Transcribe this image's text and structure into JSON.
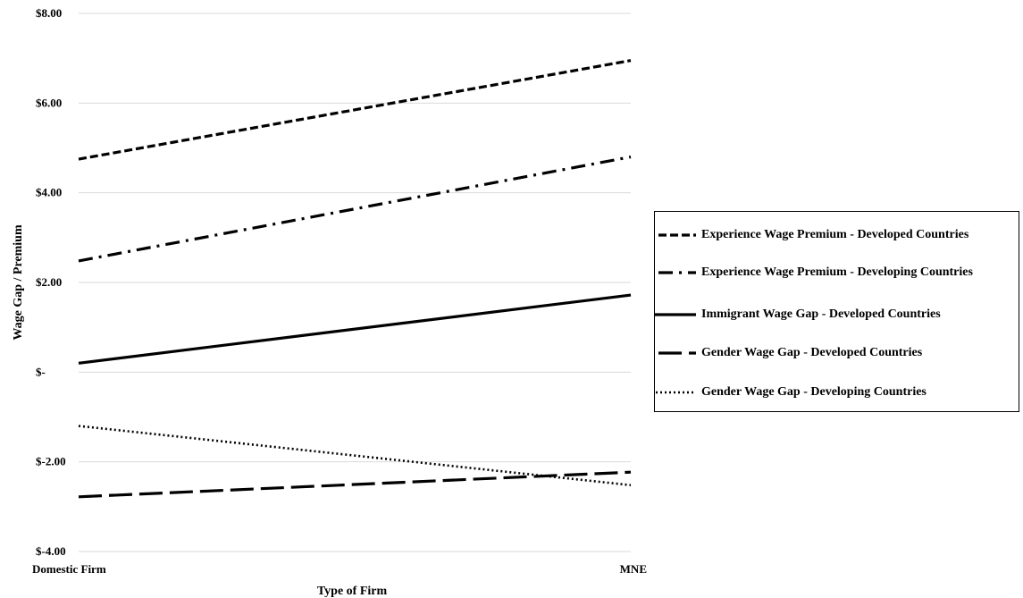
{
  "chart_data": {
    "type": "line",
    "title": "",
    "xlabel": "Type of Firm",
    "ylabel": "Wage Gap / Premium",
    "categories": [
      "Domestic Firm",
      "MNE"
    ],
    "ylim": [
      -4,
      8
    ],
    "yticks": [
      8,
      6,
      4,
      2,
      0,
      -2,
      -4
    ],
    "ytick_labels": [
      "$8.00",
      "$6.00",
      "$4.00",
      "$2.00",
      "$-",
      "$-2.00",
      "$-4.00"
    ],
    "grid": true,
    "legend_position": "right",
    "series": [
      {
        "name": "Experience Wage Premium - Developed Countries",
        "values": [
          4.75,
          6.95
        ],
        "style": "short-dash",
        "color": "#000000"
      },
      {
        "name": "Experience Wage Premium - Developing Countries",
        "values": [
          2.48,
          4.8
        ],
        "style": "dash-dot",
        "color": "#000000"
      },
      {
        "name": "Immigrant Wage Gap - Developed Countries",
        "values": [
          0.2,
          1.72
        ],
        "style": "solid",
        "color": "#000000"
      },
      {
        "name": "Gender Wage Gap - Developed Countries",
        "values": [
          -2.78,
          -2.23
        ],
        "style": "long-dash",
        "color": "#000000"
      },
      {
        "name": "Gender Wage Gap - Developing Countries",
        "values": [
          -1.2,
          -2.52
        ],
        "style": "dotted",
        "color": "#000000"
      }
    ]
  }
}
